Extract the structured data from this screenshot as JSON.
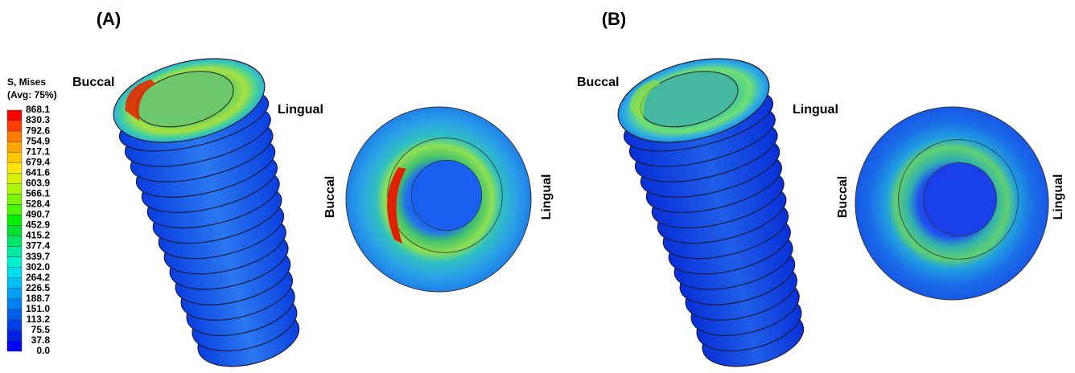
{
  "panels": [
    {
      "label": "(A)",
      "side_view": {
        "buccal": "Buccal",
        "lingual": "Lingual"
      },
      "top_view": {
        "buccal": "Buccal",
        "lingual": "Lingual"
      }
    },
    {
      "label": "(B)",
      "side_view": {
        "buccal": "Buccal",
        "lingual": "Lingual"
      },
      "top_view": {
        "buccal": "Buccal",
        "lingual": "Lingual"
      }
    }
  ],
  "legend": {
    "title": "S, Mises",
    "subtitle": "(Avg: 75%)",
    "ticks": [
      "868.1",
      "830.3",
      "792.6",
      "754.9",
      "717.1",
      "679.4",
      "641.6",
      "603.9",
      "566.1",
      "528.4",
      "490.7",
      "452.9",
      "415.2",
      "377.4",
      "339.7",
      "302.0",
      "264.2",
      "226.5",
      "188.7",
      "151.0",
      "113.2",
      "75.5",
      "37.8",
      "0.0"
    ],
    "colors": [
      "#ff0000",
      "#ff3d00",
      "#ff7a00",
      "#ffa500",
      "#ffc800",
      "#ffe500",
      "#d7f000",
      "#b0f500",
      "#7df500",
      "#4cf500",
      "#00f000",
      "#00e030",
      "#00e66b",
      "#00eba3",
      "#00f0d2",
      "#00e0f0",
      "#00c0f5",
      "#00a0f5",
      "#0080f0",
      "#0060eb",
      "#0040e6",
      "#0020e6",
      "#0000ff"
    ]
  }
}
